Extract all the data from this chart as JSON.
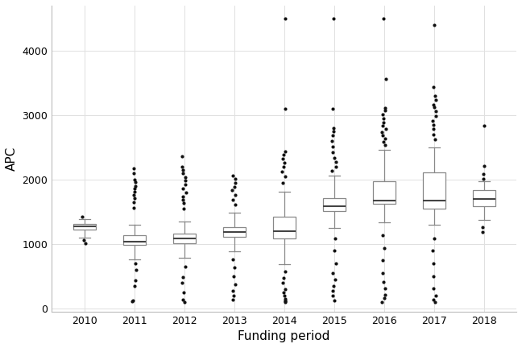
{
  "title": "",
  "xlabel": "Funding period",
  "ylabel": "APC",
  "years": [
    2010,
    2011,
    2012,
    2013,
    2014,
    2015,
    2016,
    2017,
    2018
  ],
  "ylim": [
    -50,
    4700
  ],
  "yticks": [
    0,
    1000,
    2000,
    3000,
    4000
  ],
  "background_color": "#ffffff",
  "grid_color": "#e0e0e0",
  "box_stats": {
    "2010": {
      "q1": 1220,
      "median": 1270,
      "q3": 1310,
      "whisker_low": 1100,
      "whisker_high": 1380,
      "outliers": [
        1060,
        1010,
        1420
      ]
    },
    "2011": {
      "q1": 990,
      "median": 1040,
      "q3": 1130,
      "whisker_low": 760,
      "whisker_high": 1300,
      "outliers": [
        700,
        600,
        430,
        350,
        120,
        110,
        1560,
        1650,
        1710,
        1760,
        1810,
        1860,
        1900,
        1960,
        2000,
        2100,
        2170
      ]
    },
    "2012": {
      "q1": 1010,
      "median": 1090,
      "q3": 1160,
      "whisker_low": 780,
      "whisker_high": 1350,
      "outliers": [
        650,
        480,
        390,
        240,
        130,
        100,
        1550,
        1640,
        1690,
        1740,
        1800,
        1860,
        1920,
        1980,
        2040,
        2100,
        2150,
        2200,
        2360
      ]
    },
    "2013": {
      "q1": 1110,
      "median": 1185,
      "q3": 1260,
      "whisker_low": 880,
      "whisker_high": 1490,
      "outliers": [
        760,
        630,
        490,
        370,
        270,
        190,
        130,
        1610,
        1690,
        1760,
        1830,
        1890,
        1950,
        2010,
        2060
      ]
    },
    "2014": {
      "q1": 1090,
      "median": 1195,
      "q3": 1420,
      "whisker_low": 680,
      "whisker_high": 1810,
      "outliers": [
        570,
        470,
        390,
        300,
        240,
        190,
        145,
        125,
        105,
        95,
        1950,
        2050,
        2120,
        2200,
        2260,
        2320,
        2390,
        2430,
        3100,
        4500
      ]
    },
    "2015": {
      "q1": 1510,
      "median": 1590,
      "q3": 1710,
      "whisker_low": 1250,
      "whisker_high": 2060,
      "outliers": [
        1090,
        890,
        690,
        540,
        440,
        340,
        270,
        190,
        125,
        2140,
        2200,
        2270,
        2340,
        2420,
        2510,
        2600,
        2690,
        2750,
        2800,
        3100,
        4500
      ]
    },
    "2016": {
      "q1": 1620,
      "median": 1670,
      "q3": 1970,
      "whisker_low": 1340,
      "whisker_high": 2460,
      "outliers": [
        1140,
        940,
        740,
        540,
        410,
        310,
        210,
        155,
        95,
        2530,
        2590,
        2640,
        2690,
        2730,
        2780,
        2830,
        2880,
        2950,
        3010,
        3070,
        3110,
        3560,
        4500
      ]
    },
    "2017": {
      "q1": 1550,
      "median": 1670,
      "q3": 2110,
      "whisker_low": 1300,
      "whisker_high": 2500,
      "outliers": [
        1090,
        890,
        690,
        490,
        310,
        195,
        135,
        95,
        2620,
        2700,
        2780,
        2850,
        2910,
        2980,
        3060,
        3120,
        3160,
        3230,
        3300,
        3440,
        4400
      ]
    },
    "2018": {
      "q1": 1590,
      "median": 1695,
      "q3": 1830,
      "whisker_low": 1370,
      "whisker_high": 1970,
      "outliers": [
        1260,
        1190,
        2010,
        2090,
        2210,
        2830
      ]
    }
  },
  "box_width": 0.45,
  "box_facecolor": "#ffffff",
  "box_edgecolor": "#888888",
  "median_color": "#444444",
  "whisker_color": "#888888",
  "flier_color": "#111111",
  "flier_size": 3.0
}
